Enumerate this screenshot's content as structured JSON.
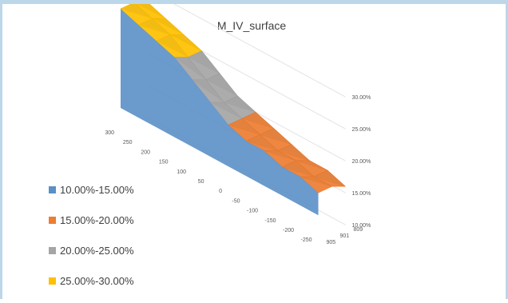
{
  "chart_data": {
    "type": "surface",
    "title": "M_IV_surface",
    "x_ticks": [
      "300",
      "250",
      "200",
      "150",
      "100",
      "50",
      "0",
      "-50",
      "-100",
      "-150",
      "-200",
      "-250"
    ],
    "y_ticks": [
      "905",
      "901",
      "809"
    ],
    "z_ticks": [
      "10.00%",
      "15.00%",
      "20.00%",
      "25.00%",
      "30.00%"
    ],
    "zlim": [
      0.1,
      0.3
    ],
    "bands": [
      {
        "label": "10.00%-15.00%",
        "color": "#5b8fc7",
        "range": [
          0.1,
          0.15
        ]
      },
      {
        "label": "15.00%-20.00%",
        "color": "#ed7d31",
        "range": [
          0.15,
          0.2
        ]
      },
      {
        "label": "20.00%-25.00%",
        "color": "#a5a5a5",
        "range": [
          0.2,
          0.25
        ]
      },
      {
        "label": "25.00%-30.00%",
        "color": "#ffc000",
        "range": [
          0.25,
          0.3
        ]
      }
    ],
    "series": [
      {
        "name": "905",
        "values": [
          0.29,
          0.28,
          0.27,
          0.26,
          0.24,
          0.22,
          0.2,
          0.19,
          0.19,
          0.18,
          0.18,
          0.17
        ]
      },
      {
        "name": "901",
        "values": [
          0.29,
          0.28,
          0.27,
          0.25,
          0.23,
          0.21,
          0.2,
          0.19,
          0.18,
          0.18,
          0.17,
          0.17
        ]
      },
      {
        "name": "809",
        "values": [
          0.28,
          0.27,
          0.26,
          0.25,
          0.23,
          0.21,
          0.2,
          0.19,
          0.18,
          0.17,
          0.17,
          0.16
        ]
      }
    ],
    "grid": true,
    "legend": "left"
  }
}
